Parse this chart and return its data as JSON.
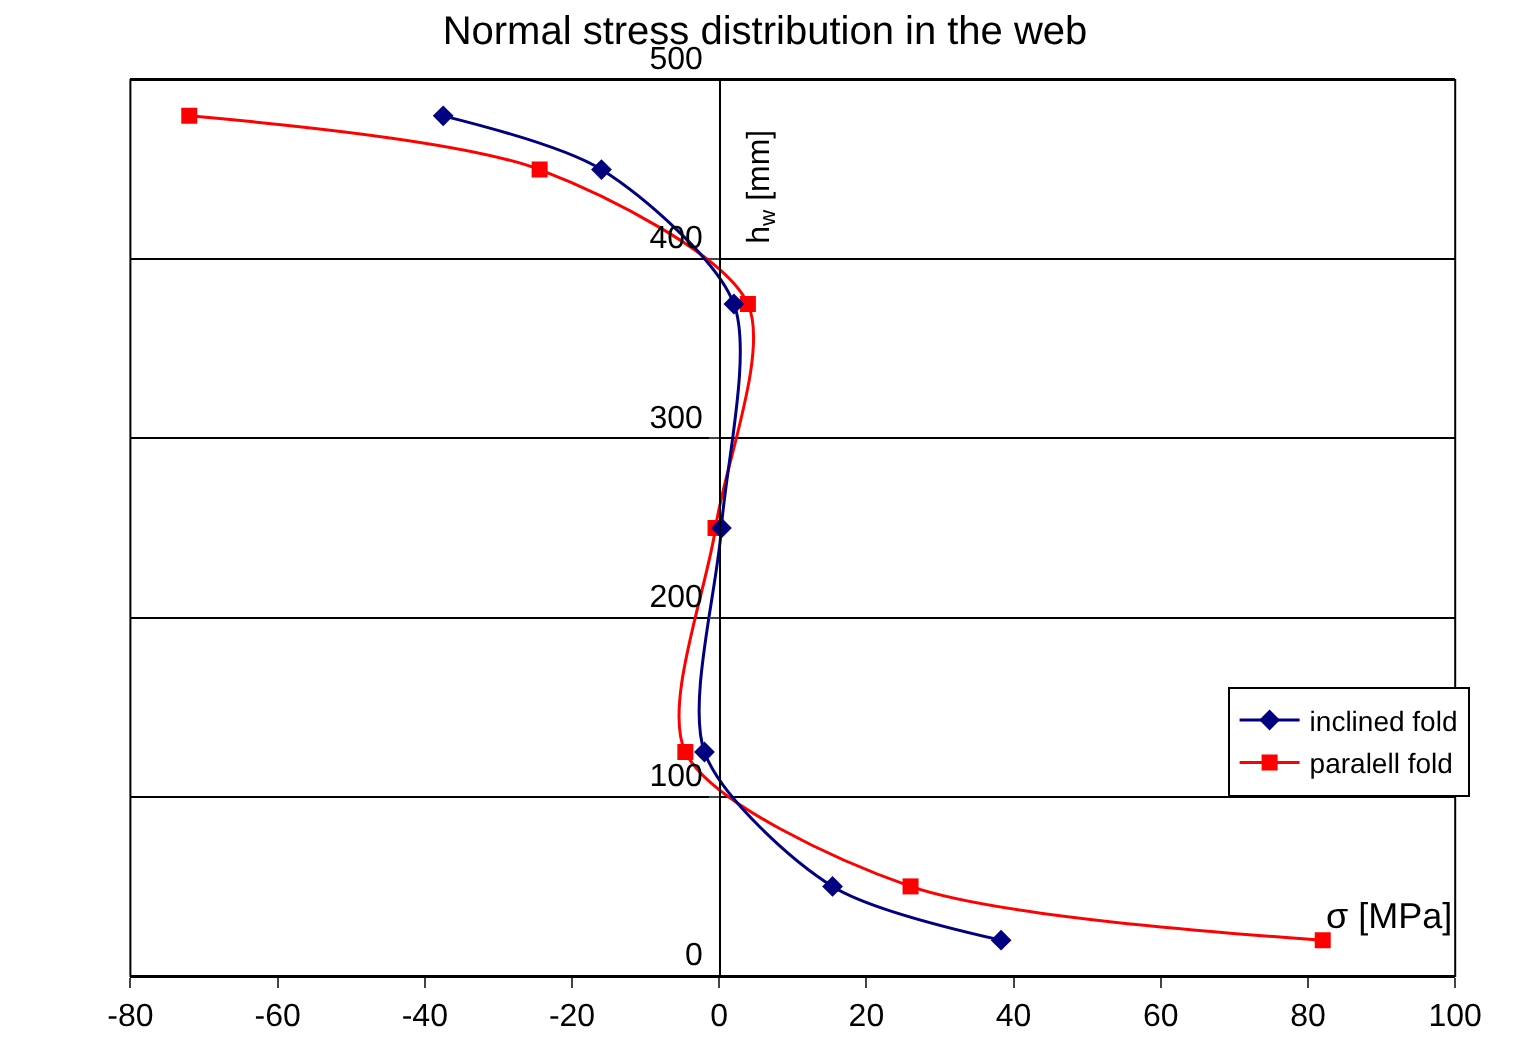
{
  "chart_data": {
    "type": "line",
    "title": "Normal stress distribution in the web",
    "xlabel": "σ [MPa]",
    "ylabel": "h$_{w}$ [mm]",
    "xlim": [
      -80,
      100
    ],
    "xticks": [
      -80,
      -60,
      -40,
      -20,
      0,
      20,
      40,
      60,
      80,
      100
    ],
    "ylim": [
      0,
      500
    ],
    "yticks": [
      0,
      100,
      200,
      300,
      400,
      500
    ],
    "grid": "y",
    "legend": "bottom right",
    "series": [
      {
        "name": "inclined fold",
        "color": "#000080",
        "marker": "diamond",
        "x": [
          -37.5,
          -16,
          2,
          0.3,
          -2,
          15.4,
          38.3
        ],
        "values": [
          480,
          450,
          375,
          250,
          125,
          50,
          20
        ]
      },
      {
        "name": "paralell fold",
        "color": "#ff0000",
        "marker": "square",
        "x": [
          -72,
          -24.4,
          3.9,
          -0.5,
          -4.6,
          26,
          82
        ],
        "values": [
          480,
          450,
          375,
          250,
          125,
          50,
          20
        ]
      }
    ]
  }
}
